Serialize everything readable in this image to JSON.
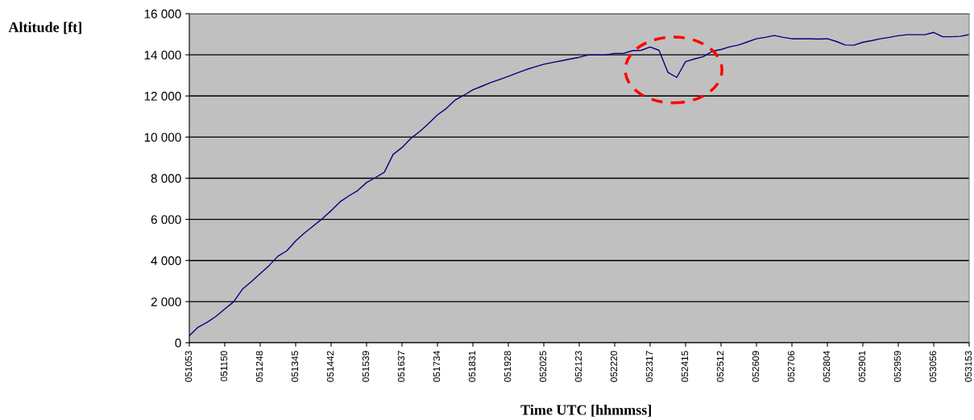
{
  "chart_data": {
    "type": "line",
    "xlabel": "Time UTC [hhmmss]",
    "ylabel": "Altitude [ft]",
    "categories": [
      "051053",
      null,
      null,
      null,
      "051150",
      null,
      null,
      null,
      "051248",
      null,
      null,
      null,
      "051345",
      null,
      null,
      null,
      "051442",
      null,
      null,
      null,
      "051539",
      null,
      null,
      null,
      "051637",
      null,
      null,
      null,
      "051734",
      null,
      null,
      null,
      "051831",
      null,
      null,
      null,
      "051928",
      null,
      null,
      null,
      "052025",
      null,
      null,
      null,
      "052123",
      null,
      null,
      null,
      "052220",
      null,
      null,
      null,
      "052317",
      null,
      null,
      null,
      "052415",
      null,
      null,
      null,
      "052512",
      null,
      null,
      null,
      "052609",
      null,
      null,
      null,
      "052706",
      null,
      null,
      null,
      "052804",
      null,
      null,
      null,
      "052901",
      null,
      null,
      null,
      "052959",
      null,
      null,
      null,
      "053056",
      null,
      null,
      null,
      "053153"
    ],
    "series": [
      {
        "color": "#000080",
        "values": [
          340,
          760,
          990,
          1280,
          1640,
          1990,
          2610,
          2970,
          3360,
          3750,
          4210,
          4470,
          4950,
          5340,
          5680,
          6030,
          6420,
          6850,
          7140,
          7400,
          7790,
          8030,
          8290,
          9160,
          9490,
          9940,
          10270,
          10660,
          11080,
          11390,
          11800,
          12040,
          12300,
          12470,
          12650,
          12800,
          12950,
          13120,
          13280,
          13410,
          13540,
          13630,
          13710,
          13800,
          13880,
          13990,
          13990,
          14000,
          14070,
          14070,
          14200,
          14220,
          14380,
          14220,
          13150,
          12900,
          13670,
          13800,
          13910,
          14170,
          14260,
          14390,
          14480,
          14630,
          14780,
          14850,
          14940,
          14850,
          14780,
          14780,
          14780,
          14770,
          14780,
          14650,
          14480,
          14470,
          14610,
          14690,
          14780,
          14850,
          14930,
          14980,
          14980,
          14980,
          15090,
          14880,
          14880,
          14900,
          14980
        ]
      }
    ],
    "ylim": [
      0,
      16000
    ],
    "yticks": [
      {
        "value": 0,
        "label": "0"
      },
      {
        "value": 2000,
        "label": "2 000"
      },
      {
        "value": 4000,
        "label": "4 000"
      },
      {
        "value": 6000,
        "label": "6 000"
      },
      {
        "value": 8000,
        "label": "8 000"
      },
      {
        "value": 10000,
        "label": "10 000"
      },
      {
        "value": 12000,
        "label": "12 000"
      },
      {
        "value": 14000,
        "label": "14 000"
      },
      {
        "value": 16000,
        "label": "16 000"
      }
    ],
    "grid": "y",
    "marker": "none",
    "line_style": "solid"
  }
}
